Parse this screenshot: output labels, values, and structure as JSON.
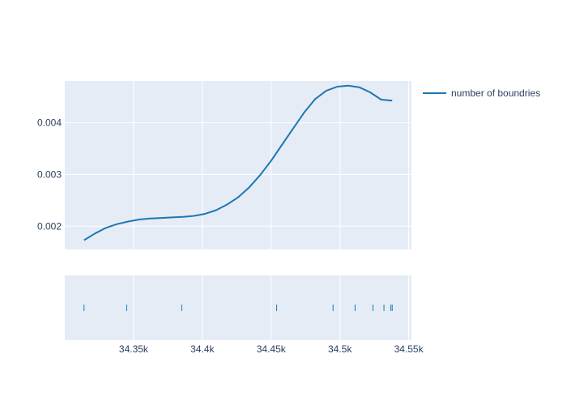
{
  "chart_data": {
    "type": "line",
    "title": "",
    "xlabel": "",
    "ylabel": "",
    "xlim": [
      34300,
      34552
    ],
    "ylim": [
      0.00155,
      0.00481
    ],
    "x_ticks": [
      {
        "value": 34350,
        "label": "34.35k"
      },
      {
        "value": 34400,
        "label": "34.4k"
      },
      {
        "value": 34450,
        "label": "34.45k"
      },
      {
        "value": 34500,
        "label": "34.5k"
      },
      {
        "value": 34550,
        "label": "34.55k"
      }
    ],
    "y_ticks": [
      {
        "value": 0.002,
        "label": "0.002"
      },
      {
        "value": 0.003,
        "label": "0.003"
      },
      {
        "value": 0.004,
        "label": "0.004"
      }
    ],
    "grid": true,
    "legend_position": "top-right",
    "series": [
      {
        "name": "number of boundries",
        "color": "#1f77b4",
        "x": [
          34314,
          34322,
          34330,
          34338,
          34346,
          34354,
          34362,
          34370,
          34378,
          34386,
          34394,
          34402,
          34410,
          34418,
          34426,
          34434,
          34442,
          34450,
          34458,
          34466,
          34474,
          34482,
          34490,
          34498,
          34506,
          34514,
          34522,
          34530,
          34538
        ],
        "y": [
          0.00173,
          0.00186,
          0.00197,
          0.00204,
          0.00209,
          0.00213,
          0.00215,
          0.00216,
          0.00217,
          0.00218,
          0.0022,
          0.00224,
          0.00231,
          0.00242,
          0.00256,
          0.00275,
          0.00299,
          0.00327,
          0.00358,
          0.00389,
          0.0042,
          0.00446,
          0.00462,
          0.0047,
          0.00472,
          0.00469,
          0.00459,
          0.00445,
          0.00443
        ]
      }
    ],
    "rug": {
      "series": "number of boundries",
      "x": [
        34314,
        34345,
        34385,
        34454,
        34495,
        34511,
        34524,
        34532,
        34537,
        34538
      ]
    }
  }
}
